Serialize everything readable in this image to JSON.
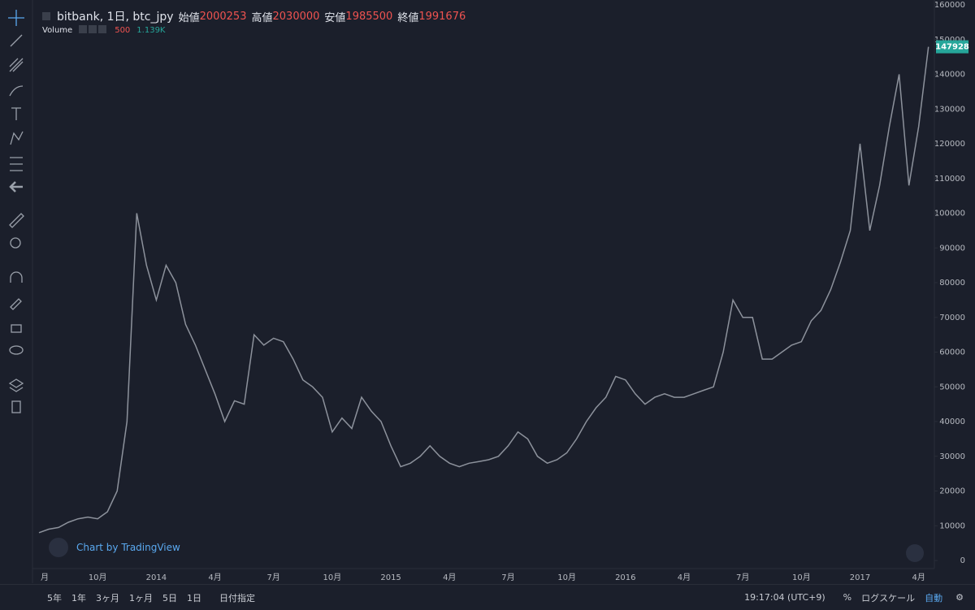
{
  "header": {
    "symbol": "bitbank, 1日, btc_jpy",
    "open_label": "始値",
    "open": "2000253",
    "high_label": "高値",
    "high": "2030000",
    "low_label": "安値",
    "low": "1985500",
    "close_label": "終値",
    "close": "1991676",
    "volume_label": "Volume",
    "volume_a": "500",
    "volume_b": "1.139K"
  },
  "watermark": "Chart by TradingView",
  "chart_data": {
    "type": "line",
    "color": "#8d929c",
    "grid": false,
    "categories": [
      "月",
      null,
      null,
      null,
      null,
      null,
      "10月",
      null,
      null,
      null,
      null,
      null,
      "2014",
      null,
      null,
      null,
      null,
      null,
      "4月",
      null,
      null,
      null,
      null,
      null,
      "7月",
      null,
      null,
      null,
      null,
      null,
      "10月",
      null,
      null,
      null,
      null,
      null,
      "2015",
      null,
      null,
      null,
      null,
      null,
      "4月",
      null,
      null,
      null,
      null,
      null,
      "7月",
      null,
      null,
      null,
      null,
      null,
      "10月",
      null,
      null,
      null,
      null,
      null,
      "2016",
      null,
      null,
      null,
      null,
      null,
      "4月",
      null,
      null,
      null,
      null,
      null,
      "7月",
      null,
      null,
      null,
      null,
      null,
      "10月",
      null,
      null,
      null,
      null,
      null,
      "2017",
      null,
      null,
      null,
      null,
      null,
      "4月",
      null
    ],
    "values": [
      8000,
      9000,
      9500,
      11000,
      12000,
      12500,
      12000,
      14000,
      20000,
      40000,
      100000,
      85000,
      75000,
      85000,
      80000,
      68000,
      62000,
      55000,
      48000,
      40000,
      46000,
      45000,
      65000,
      62000,
      64000,
      63000,
      58000,
      52000,
      50000,
      47000,
      37000,
      41000,
      38000,
      47000,
      43000,
      40000,
      33000,
      27000,
      28000,
      30000,
      33000,
      30000,
      28000,
      27000,
      28000,
      28500,
      29000,
      30000,
      33000,
      37000,
      35000,
      30000,
      28000,
      29000,
      31000,
      35000,
      40000,
      44000,
      47000,
      53000,
      52000,
      48000,
      45000,
      47000,
      48000,
      47000,
      47000,
      48000,
      49000,
      50000,
      60000,
      75000,
      70000,
      70000,
      58000,
      58000,
      60000,
      62000,
      63000,
      69000,
      72000,
      78000,
      86000,
      95000,
      120000,
      95000,
      108000,
      125000,
      140000,
      108000,
      125000,
      147928
    ],
    "ylim": [
      0,
      160000
    ],
    "yticks": [
      0,
      10000,
      20000,
      30000,
      40000,
      50000,
      60000,
      70000,
      80000,
      90000,
      100000,
      110000,
      120000,
      130000,
      140000,
      150000,
      160000
    ]
  },
  "footer": {
    "ranges": [
      "5年",
      "1年",
      "3ヶ月",
      "1ヶ月",
      "5日",
      "1日"
    ],
    "custom": "日付指定",
    "time": "19:17:04 (UTC+9)",
    "percent": "%",
    "log": "ログスケール",
    "auto": "自動"
  }
}
